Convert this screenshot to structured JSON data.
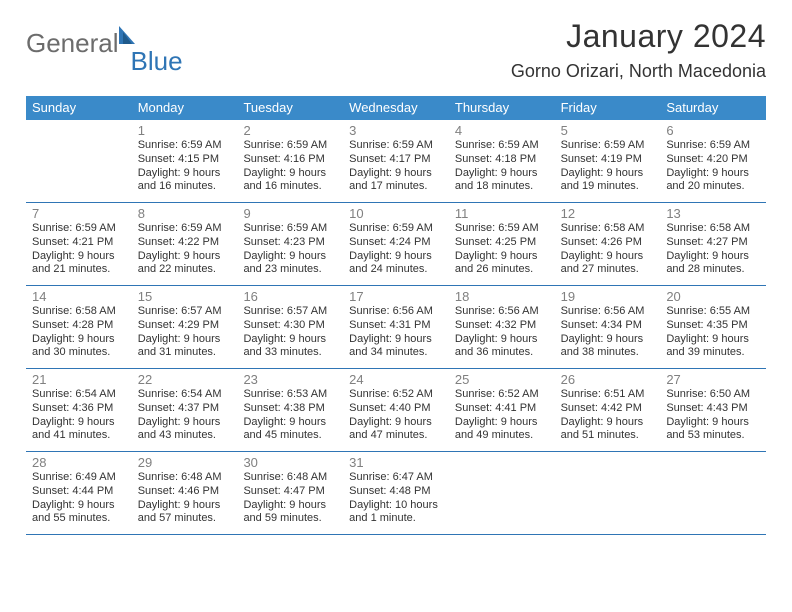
{
  "brand": {
    "general": "General",
    "blue": "Blue"
  },
  "title": "January 2024",
  "location": "Gorno Orizari, North Macedonia",
  "colors": {
    "header_bg": "#3a8ac9",
    "header_text": "#ffffff",
    "border": "#2f75b5",
    "daynum": "#808080",
    "body_text": "#333333",
    "logo_gray": "#6c6c6c",
    "logo_blue": "#2f75b5",
    "page_bg": "#ffffff"
  },
  "day_labels": [
    "Sunday",
    "Monday",
    "Tuesday",
    "Wednesday",
    "Thursday",
    "Friday",
    "Saturday"
  ],
  "weeks": [
    [
      {
        "n": "",
        "sr": "",
        "ss": "",
        "dl": ""
      },
      {
        "n": "1",
        "sr": "Sunrise: 6:59 AM",
        "ss": "Sunset: 4:15 PM",
        "dl": "Daylight: 9 hours and 16 minutes."
      },
      {
        "n": "2",
        "sr": "Sunrise: 6:59 AM",
        "ss": "Sunset: 4:16 PM",
        "dl": "Daylight: 9 hours and 16 minutes."
      },
      {
        "n": "3",
        "sr": "Sunrise: 6:59 AM",
        "ss": "Sunset: 4:17 PM",
        "dl": "Daylight: 9 hours and 17 minutes."
      },
      {
        "n": "4",
        "sr": "Sunrise: 6:59 AM",
        "ss": "Sunset: 4:18 PM",
        "dl": "Daylight: 9 hours and 18 minutes."
      },
      {
        "n": "5",
        "sr": "Sunrise: 6:59 AM",
        "ss": "Sunset: 4:19 PM",
        "dl": "Daylight: 9 hours and 19 minutes."
      },
      {
        "n": "6",
        "sr": "Sunrise: 6:59 AM",
        "ss": "Sunset: 4:20 PM",
        "dl": "Daylight: 9 hours and 20 minutes."
      }
    ],
    [
      {
        "n": "7",
        "sr": "Sunrise: 6:59 AM",
        "ss": "Sunset: 4:21 PM",
        "dl": "Daylight: 9 hours and 21 minutes."
      },
      {
        "n": "8",
        "sr": "Sunrise: 6:59 AM",
        "ss": "Sunset: 4:22 PM",
        "dl": "Daylight: 9 hours and 22 minutes."
      },
      {
        "n": "9",
        "sr": "Sunrise: 6:59 AM",
        "ss": "Sunset: 4:23 PM",
        "dl": "Daylight: 9 hours and 23 minutes."
      },
      {
        "n": "10",
        "sr": "Sunrise: 6:59 AM",
        "ss": "Sunset: 4:24 PM",
        "dl": "Daylight: 9 hours and 24 minutes."
      },
      {
        "n": "11",
        "sr": "Sunrise: 6:59 AM",
        "ss": "Sunset: 4:25 PM",
        "dl": "Daylight: 9 hours and 26 minutes."
      },
      {
        "n": "12",
        "sr": "Sunrise: 6:58 AM",
        "ss": "Sunset: 4:26 PM",
        "dl": "Daylight: 9 hours and 27 minutes."
      },
      {
        "n": "13",
        "sr": "Sunrise: 6:58 AM",
        "ss": "Sunset: 4:27 PM",
        "dl": "Daylight: 9 hours and 28 minutes."
      }
    ],
    [
      {
        "n": "14",
        "sr": "Sunrise: 6:58 AM",
        "ss": "Sunset: 4:28 PM",
        "dl": "Daylight: 9 hours and 30 minutes."
      },
      {
        "n": "15",
        "sr": "Sunrise: 6:57 AM",
        "ss": "Sunset: 4:29 PM",
        "dl": "Daylight: 9 hours and 31 minutes."
      },
      {
        "n": "16",
        "sr": "Sunrise: 6:57 AM",
        "ss": "Sunset: 4:30 PM",
        "dl": "Daylight: 9 hours and 33 minutes."
      },
      {
        "n": "17",
        "sr": "Sunrise: 6:56 AM",
        "ss": "Sunset: 4:31 PM",
        "dl": "Daylight: 9 hours and 34 minutes."
      },
      {
        "n": "18",
        "sr": "Sunrise: 6:56 AM",
        "ss": "Sunset: 4:32 PM",
        "dl": "Daylight: 9 hours and 36 minutes."
      },
      {
        "n": "19",
        "sr": "Sunrise: 6:56 AM",
        "ss": "Sunset: 4:34 PM",
        "dl": "Daylight: 9 hours and 38 minutes."
      },
      {
        "n": "20",
        "sr": "Sunrise: 6:55 AM",
        "ss": "Sunset: 4:35 PM",
        "dl": "Daylight: 9 hours and 39 minutes."
      }
    ],
    [
      {
        "n": "21",
        "sr": "Sunrise: 6:54 AM",
        "ss": "Sunset: 4:36 PM",
        "dl": "Daylight: 9 hours and 41 minutes."
      },
      {
        "n": "22",
        "sr": "Sunrise: 6:54 AM",
        "ss": "Sunset: 4:37 PM",
        "dl": "Daylight: 9 hours and 43 minutes."
      },
      {
        "n": "23",
        "sr": "Sunrise: 6:53 AM",
        "ss": "Sunset: 4:38 PM",
        "dl": "Daylight: 9 hours and 45 minutes."
      },
      {
        "n": "24",
        "sr": "Sunrise: 6:52 AM",
        "ss": "Sunset: 4:40 PM",
        "dl": "Daylight: 9 hours and 47 minutes."
      },
      {
        "n": "25",
        "sr": "Sunrise: 6:52 AM",
        "ss": "Sunset: 4:41 PM",
        "dl": "Daylight: 9 hours and 49 minutes."
      },
      {
        "n": "26",
        "sr": "Sunrise: 6:51 AM",
        "ss": "Sunset: 4:42 PM",
        "dl": "Daylight: 9 hours and 51 minutes."
      },
      {
        "n": "27",
        "sr": "Sunrise: 6:50 AM",
        "ss": "Sunset: 4:43 PM",
        "dl": "Daylight: 9 hours and 53 minutes."
      }
    ],
    [
      {
        "n": "28",
        "sr": "Sunrise: 6:49 AM",
        "ss": "Sunset: 4:44 PM",
        "dl": "Daylight: 9 hours and 55 minutes."
      },
      {
        "n": "29",
        "sr": "Sunrise: 6:48 AM",
        "ss": "Sunset: 4:46 PM",
        "dl": "Daylight: 9 hours and 57 minutes."
      },
      {
        "n": "30",
        "sr": "Sunrise: 6:48 AM",
        "ss": "Sunset: 4:47 PM",
        "dl": "Daylight: 9 hours and 59 minutes."
      },
      {
        "n": "31",
        "sr": "Sunrise: 6:47 AM",
        "ss": "Sunset: 4:48 PM",
        "dl": "Daylight: 10 hours and 1 minute."
      },
      {
        "n": "",
        "sr": "",
        "ss": "",
        "dl": ""
      },
      {
        "n": "",
        "sr": "",
        "ss": "",
        "dl": ""
      },
      {
        "n": "",
        "sr": "",
        "ss": "",
        "dl": ""
      }
    ]
  ]
}
